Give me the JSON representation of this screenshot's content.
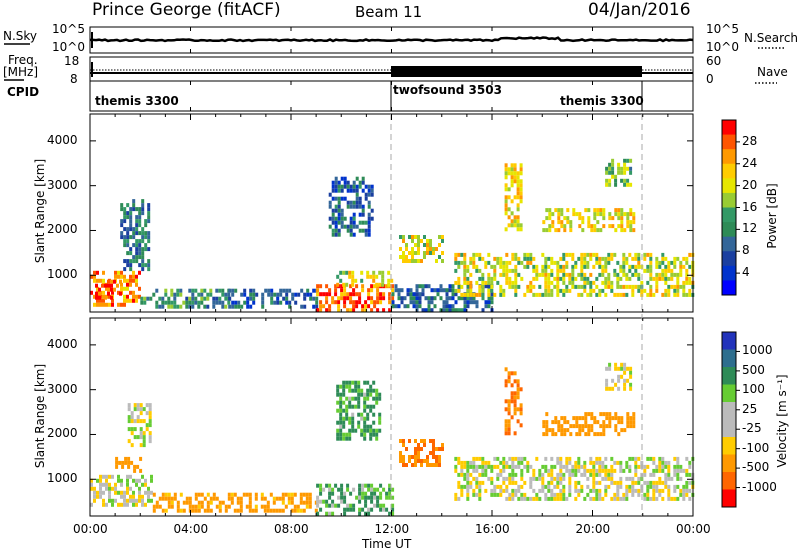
{
  "header": {
    "station": "Prince George (fitACF)",
    "beam": "Beam 11",
    "date": "04/Jan/2016"
  },
  "top_panels": {
    "nsky_label": "N.Sky",
    "nsearch_label": "N.Search",
    "nsky_ticks": [
      "10^5",
      "10^0"
    ],
    "nsky_right_ticks": [
      "10^5",
      "10^0"
    ],
    "freq_label_1": "Freq.",
    "freq_label_2": "[MHz]",
    "freq_ticks": [
      "18",
      "8"
    ],
    "nave_label": "Nave",
    "nave_ticks": [
      "60",
      "0"
    ],
    "cpid_label": "CPID",
    "cpid_segments": [
      {
        "label": "themis 3300"
      },
      {
        "label": "twofsound 3503"
      },
      {
        "label": "themis 3300"
      }
    ]
  },
  "power_panel": {
    "ylabel": "Slant Range [km]",
    "colorbar_label": "Power [dB]",
    "colorbar_ticks": [
      "28",
      "24",
      "20",
      "16",
      "12",
      "8",
      "4"
    ],
    "colorbar_colors": [
      "#ff0000",
      "#ff5500",
      "#ff9900",
      "#ffcc00",
      "#e6e600",
      "#99cc33",
      "#339966",
      "#2e8b57",
      "#336699",
      "#1a3fa0",
      "#0033cc",
      "#0000ff"
    ]
  },
  "velocity_panel": {
    "ylabel": "Slant Range [km]",
    "colorbar_label": "Velocity [m s⁻¹]",
    "colorbar_ticks": [
      "1000",
      "500",
      "100",
      "25",
      "-25",
      "-100",
      "-500",
      "-1000"
    ],
    "colorbar_colors": [
      "#2233bb",
      "#2e6e8e",
      "#2e8b57",
      "#66cc33",
      "#bbbbbb",
      "#bbbbbb",
      "#ffcc00",
      "#ff9900",
      "#ff6600",
      "#ff0000"
    ]
  },
  "xaxis": {
    "xlabel": "Time UT",
    "ticks": [
      "00:00",
      "04:00",
      "08:00",
      "12:00",
      "16:00",
      "20:00",
      "00:00"
    ]
  },
  "yaxis": {
    "ticks": [
      "4000",
      "3000",
      "2000",
      "1000"
    ]
  },
  "chart_data": {
    "type": "heatmap",
    "x_range_hours": [
      0,
      24
    ],
    "y_range_km": [
      180,
      4600
    ],
    "power_clusters": [
      {
        "t0": 0.0,
        "t1": 2.0,
        "r0": 380,
        "r1": 1100,
        "v": 24
      },
      {
        "t0": 0.2,
        "t1": 1.2,
        "r0": 500,
        "r1": 900,
        "v": 28
      },
      {
        "t0": 1.2,
        "t1": 2.3,
        "r0": 1100,
        "r1": 2700,
        "v": 10
      },
      {
        "t0": 2.0,
        "t1": 5.5,
        "r0": 300,
        "r1": 700,
        "v": 12
      },
      {
        "t0": 5.5,
        "t1": 9.0,
        "r0": 300,
        "r1": 700,
        "v": 8
      },
      {
        "t0": 9.0,
        "t1": 12.0,
        "r0": 200,
        "r1": 800,
        "v": 26
      },
      {
        "t0": 9.8,
        "t1": 12.0,
        "r0": 800,
        "r1": 1100,
        "v": 18
      },
      {
        "t0": 9.5,
        "t1": 11.2,
        "r0": 1900,
        "r1": 3200,
        "v": 8
      },
      {
        "t0": 12.0,
        "t1": 16.0,
        "r0": 200,
        "r1": 800,
        "v": 8
      },
      {
        "t0": 12.3,
        "t1": 14.0,
        "r0": 1300,
        "r1": 1900,
        "v": 18
      },
      {
        "t0": 14.5,
        "t1": 24.0,
        "r0": 600,
        "r1": 1500,
        "v": 18
      },
      {
        "t0": 16.5,
        "t1": 17.2,
        "r0": 2000,
        "r1": 3500,
        "v": 20
      },
      {
        "t0": 18.0,
        "t1": 21.6,
        "r0": 2000,
        "r1": 2500,
        "v": 20
      },
      {
        "t0": 20.5,
        "t1": 21.5,
        "r0": 3000,
        "r1": 3600,
        "v": 14
      }
    ],
    "velocity_clusters": [
      {
        "t0": 0.0,
        "t1": 2.5,
        "r0": 400,
        "r1": 1100,
        "v": 0
      },
      {
        "t0": 1.0,
        "t1": 2.0,
        "r0": 1200,
        "r1": 1500,
        "v": -200
      },
      {
        "t0": 1.5,
        "t1": 2.4,
        "r0": 1800,
        "r1": 2700,
        "v": 0
      },
      {
        "t0": 2.5,
        "t1": 9.0,
        "r0": 300,
        "r1": 700,
        "v": -150
      },
      {
        "t0": 9.0,
        "t1": 12.0,
        "r0": 200,
        "r1": 900,
        "v": 60
      },
      {
        "t0": 9.8,
        "t1": 11.5,
        "r0": 1900,
        "r1": 3200,
        "v": 80
      },
      {
        "t0": 12.3,
        "t1": 14.0,
        "r0": 1300,
        "r1": 1900,
        "v": -400
      },
      {
        "t0": 14.5,
        "t1": 24.0,
        "r0": 600,
        "r1": 1500,
        "v": 0
      },
      {
        "t0": 16.5,
        "t1": 17.2,
        "r0": 2000,
        "r1": 3500,
        "v": -400
      },
      {
        "t0": 18.0,
        "t1": 21.6,
        "r0": 2000,
        "r1": 2500,
        "v": -300
      },
      {
        "t0": 20.5,
        "t1": 21.5,
        "r0": 3000,
        "r1": 3600,
        "v": 0
      }
    ]
  }
}
